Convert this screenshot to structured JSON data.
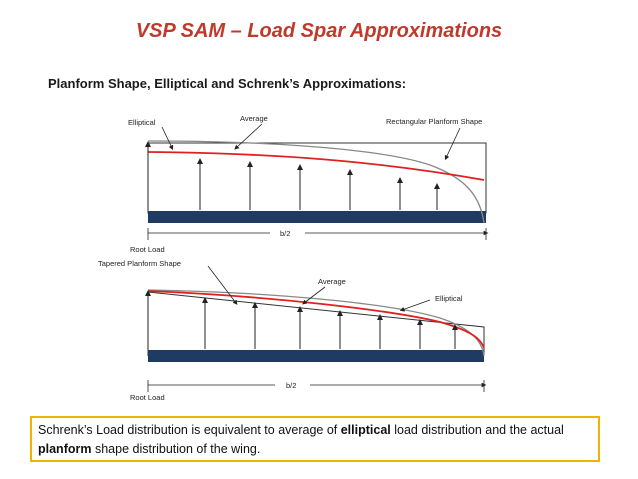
{
  "slide": {
    "title": "VSP SAM – Load Spar Approximations",
    "subtitle": "Planform Shape, Elliptical and Schrenk’s Approximations:"
  },
  "diagram_top": {
    "labels": {
      "elliptical": "Elliptical",
      "average": "Average",
      "rectangular": "Rectangular Planform Shape",
      "root_load": "Root Load",
      "half_span": "b/2"
    }
  },
  "diagram_bottom": {
    "labels": {
      "tapered": "Tapered Planform Shape",
      "average": "Average",
      "elliptical": "Elliptical",
      "root_load": "Root Load",
      "half_span": "b/2"
    }
  },
  "note": {
    "part1": "Schrenk’s Load distribution is equivalent to average of ",
    "bold1": "elliptical",
    "part2": " load distribution and the actual ",
    "bold2": "planform",
    "part3": " shape distribution of the wing."
  },
  "colors": {
    "title": "#c0392b",
    "spar": "#1f3a63",
    "average_line": "#e02020",
    "note_border": "#f0b400"
  }
}
